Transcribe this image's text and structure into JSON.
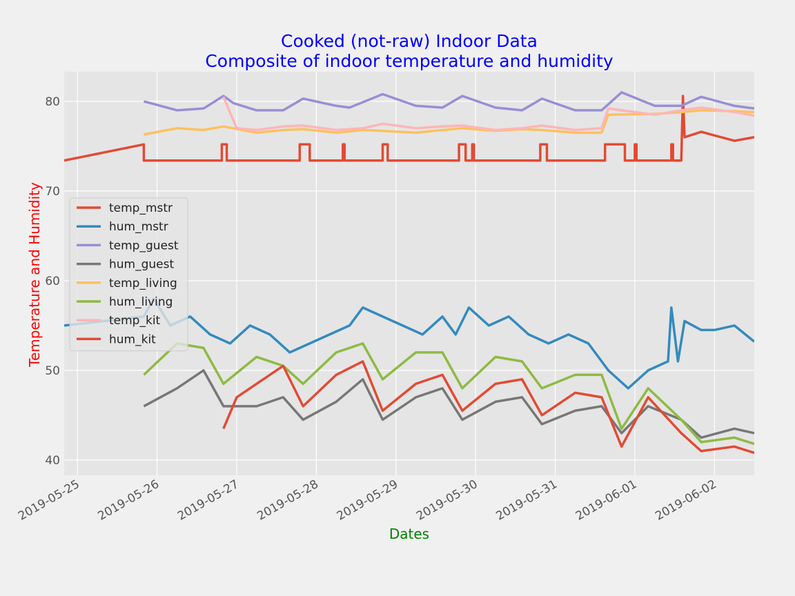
{
  "chart_data": {
    "type": "line",
    "title_lines": [
      "Cooked (not-raw) Indoor Data",
      "Composite of indoor temperature and humidity"
    ],
    "xlabel": "Dates",
    "ylabel": "Temperature and Humidity",
    "x_range": [
      "2019-05-24T20:00",
      "2019-06-02T12:00"
    ],
    "ylim": [
      38.3,
      83.3
    ],
    "y_ticks": [
      40,
      50,
      60,
      70,
      80
    ],
    "x_ticks": [
      "2019-05-25",
      "2019-05-26",
      "2019-05-27",
      "2019-05-28",
      "2019-05-29",
      "2019-05-30",
      "2019-05-31",
      "2019-06-01",
      "2019-06-02"
    ],
    "grid": true,
    "legend_position": "center-left",
    "colors": {
      "title": "#0000ff",
      "xlabel": "#008000",
      "ylabel": "#ff0000",
      "plot_bg": "#e5e5e5",
      "figure_bg": "#f0f0f0",
      "grid": "#ffffff"
    },
    "series": [
      {
        "name": "temp_mstr",
        "color": "#e24a33",
        "points": [
          [
            "2019-05-24T20:00",
            73.4
          ],
          [
            "2019-05-25T20:00",
            75.2
          ],
          [
            "2019-05-25T20:00",
            73.4
          ],
          [
            "2019-05-26T19:30",
            73.4
          ],
          [
            "2019-05-26T19:30",
            75.2
          ],
          [
            "2019-05-26T21:00",
            75.2
          ],
          [
            "2019-05-26T21:00",
            73.4
          ],
          [
            "2019-05-27T19:00",
            73.4
          ],
          [
            "2019-05-27T19:00",
            75.2
          ],
          [
            "2019-05-27T22:00",
            75.2
          ],
          [
            "2019-05-27T22:00",
            73.4
          ],
          [
            "2019-05-28T08:00",
            73.4
          ],
          [
            "2019-05-28T08:00",
            75.2
          ],
          [
            "2019-05-28T08:30",
            75.2
          ],
          [
            "2019-05-28T08:30",
            73.4
          ],
          [
            "2019-05-28T20:00",
            73.4
          ],
          [
            "2019-05-28T20:00",
            75.2
          ],
          [
            "2019-05-28T21:30",
            75.2
          ],
          [
            "2019-05-28T21:30",
            73.4
          ],
          [
            "2019-05-29T19:00",
            73.4
          ],
          [
            "2019-05-29T19:00",
            75.2
          ],
          [
            "2019-05-29T21:00",
            75.2
          ],
          [
            "2019-05-29T21:00",
            73.4
          ],
          [
            "2019-05-29T23:00",
            73.4
          ],
          [
            "2019-05-29T23:00",
            75.2
          ],
          [
            "2019-05-29T23:30",
            75.2
          ],
          [
            "2019-05-29T23:30",
            73.4
          ],
          [
            "2019-05-30T19:30",
            73.4
          ],
          [
            "2019-05-30T19:30",
            75.2
          ],
          [
            "2019-05-30T21:30",
            75.2
          ],
          [
            "2019-05-30T21:30",
            73.4
          ],
          [
            "2019-05-31T15:00",
            73.4
          ],
          [
            "2019-05-31T15:00",
            75.2
          ],
          [
            "2019-05-31T21:00",
            75.2
          ],
          [
            "2019-05-31T21:00",
            73.4
          ],
          [
            "2019-06-01T00:00",
            73.4
          ],
          [
            "2019-06-01T00:00",
            75.2
          ],
          [
            "2019-06-01T00:30",
            75.2
          ],
          [
            "2019-06-01T00:30",
            73.4
          ],
          [
            "2019-06-01T11:00",
            73.4
          ],
          [
            "2019-06-01T11:00",
            75.2
          ],
          [
            "2019-06-01T11:30",
            75.2
          ],
          [
            "2019-06-01T11:30",
            73.4
          ],
          [
            "2019-06-01T14:00",
            73.4
          ],
          [
            "2019-06-01T14:30",
            80.6
          ],
          [
            "2019-06-01T15:00",
            76.0
          ],
          [
            "2019-06-01T20:00",
            76.6
          ],
          [
            "2019-06-02T00:00",
            76.2
          ],
          [
            "2019-06-02T06:00",
            75.6
          ],
          [
            "2019-06-02T12:00",
            76.0
          ]
        ]
      },
      {
        "name": "hum_mstr",
        "color": "#348abd",
        "points": [
          [
            "2019-05-24T20:00",
            55.0
          ],
          [
            "2019-05-25T20:00",
            56.0
          ],
          [
            "2019-05-25T23:00",
            58.0
          ],
          [
            "2019-05-26T04:00",
            55.0
          ],
          [
            "2019-05-26T10:00",
            56.0
          ],
          [
            "2019-05-26T16:00",
            54.0
          ],
          [
            "2019-05-26T22:00",
            53.0
          ],
          [
            "2019-05-27T04:00",
            55.0
          ],
          [
            "2019-05-27T10:00",
            54.0
          ],
          [
            "2019-05-27T16:00",
            52.0
          ],
          [
            "2019-05-27T22:00",
            53.0
          ],
          [
            "2019-05-28T04:00",
            54.0
          ],
          [
            "2019-05-28T10:00",
            55.0
          ],
          [
            "2019-05-28T14:00",
            57.0
          ],
          [
            "2019-05-28T20:00",
            56.0
          ],
          [
            "2019-05-29T02:00",
            55.0
          ],
          [
            "2019-05-29T08:00",
            54.0
          ],
          [
            "2019-05-29T14:00",
            56.0
          ],
          [
            "2019-05-29T18:00",
            54.0
          ],
          [
            "2019-05-29T22:00",
            57.0
          ],
          [
            "2019-05-30T04:00",
            55.0
          ],
          [
            "2019-05-30T10:00",
            56.0
          ],
          [
            "2019-05-30T16:00",
            54.0
          ],
          [
            "2019-05-30T22:00",
            53.0
          ],
          [
            "2019-05-31T04:00",
            54.0
          ],
          [
            "2019-05-31T10:00",
            53.0
          ],
          [
            "2019-05-31T16:00",
            50.0
          ],
          [
            "2019-05-31T22:00",
            48.0
          ],
          [
            "2019-06-01T04:00",
            50.0
          ],
          [
            "2019-06-01T10:00",
            51.0
          ],
          [
            "2019-06-01T11:00",
            57.0
          ],
          [
            "2019-06-01T13:00",
            51.0
          ],
          [
            "2019-06-01T15:00",
            55.5
          ],
          [
            "2019-06-01T20:00",
            54.5
          ],
          [
            "2019-06-02T00:00",
            54.5
          ],
          [
            "2019-06-02T06:00",
            55.0
          ],
          [
            "2019-06-02T12:00",
            53.2
          ]
        ]
      },
      {
        "name": "temp_guest",
        "color": "#988ed5",
        "points": [
          [
            "2019-05-25T20:00",
            80.0
          ],
          [
            "2019-05-26T06:00",
            79.0
          ],
          [
            "2019-05-26T14:00",
            79.2
          ],
          [
            "2019-05-26T20:00",
            80.6
          ],
          [
            "2019-05-26T23:00",
            79.8
          ],
          [
            "2019-05-27T06:00",
            79.0
          ],
          [
            "2019-05-27T14:00",
            79.0
          ],
          [
            "2019-05-27T20:00",
            80.3
          ],
          [
            "2019-05-28T06:00",
            79.5
          ],
          [
            "2019-05-28T10:00",
            79.3
          ],
          [
            "2019-05-28T20:00",
            80.8
          ],
          [
            "2019-05-29T06:00",
            79.5
          ],
          [
            "2019-05-29T14:00",
            79.3
          ],
          [
            "2019-05-29T20:00",
            80.6
          ],
          [
            "2019-05-30T06:00",
            79.3
          ],
          [
            "2019-05-30T14:00",
            79.0
          ],
          [
            "2019-05-30T20:00",
            80.3
          ],
          [
            "2019-05-31T06:00",
            79.0
          ],
          [
            "2019-05-31T14:00",
            79.0
          ],
          [
            "2019-05-31T20:00",
            81.0
          ],
          [
            "2019-06-01T06:00",
            79.5
          ],
          [
            "2019-06-01T14:00",
            79.5
          ],
          [
            "2019-06-01T20:00",
            80.5
          ],
          [
            "2019-06-02T06:00",
            79.5
          ],
          [
            "2019-06-02T12:00",
            79.2
          ]
        ]
      },
      {
        "name": "hum_guest",
        "color": "#777777",
        "points": [
          [
            "2019-05-25T20:00",
            46.0
          ],
          [
            "2019-05-26T06:00",
            48.0
          ],
          [
            "2019-05-26T14:00",
            50.0
          ],
          [
            "2019-05-26T20:00",
            46.0
          ],
          [
            "2019-05-27T06:00",
            46.0
          ],
          [
            "2019-05-27T14:00",
            47.0
          ],
          [
            "2019-05-27T20:00",
            44.5
          ],
          [
            "2019-05-28T06:00",
            46.5
          ],
          [
            "2019-05-28T14:00",
            49.0
          ],
          [
            "2019-05-28T20:00",
            44.5
          ],
          [
            "2019-05-29T06:00",
            47.0
          ],
          [
            "2019-05-29T14:00",
            48.0
          ],
          [
            "2019-05-29T20:00",
            44.5
          ],
          [
            "2019-05-30T06:00",
            46.5
          ],
          [
            "2019-05-30T14:00",
            47.0
          ],
          [
            "2019-05-30T20:00",
            44.0
          ],
          [
            "2019-05-31T06:00",
            45.5
          ],
          [
            "2019-05-31T14:00",
            46.0
          ],
          [
            "2019-05-31T20:00",
            43.0
          ],
          [
            "2019-06-01T04:00",
            46.0
          ],
          [
            "2019-06-01T14:00",
            44.5
          ],
          [
            "2019-06-01T20:00",
            42.5
          ],
          [
            "2019-06-02T06:00",
            43.5
          ],
          [
            "2019-06-02T12:00",
            43.0
          ]
        ]
      },
      {
        "name": "temp_living",
        "color": "#fbc15e",
        "points": [
          [
            "2019-05-25T20:00",
            76.3
          ],
          [
            "2019-05-26T06:00",
            77.0
          ],
          [
            "2019-05-26T14:00",
            76.8
          ],
          [
            "2019-05-26T20:00",
            77.2
          ],
          [
            "2019-05-27T06:00",
            76.5
          ],
          [
            "2019-05-27T14:00",
            76.8
          ],
          [
            "2019-05-27T20:00",
            76.9
          ],
          [
            "2019-05-28T06:00",
            76.5
          ],
          [
            "2019-05-28T14:00",
            76.8
          ],
          [
            "2019-05-28T20:00",
            76.7
          ],
          [
            "2019-05-29T06:00",
            76.5
          ],
          [
            "2019-05-29T14:00",
            76.8
          ],
          [
            "2019-05-29T20:00",
            77.0
          ],
          [
            "2019-05-30T06:00",
            76.7
          ],
          [
            "2019-05-30T14:00",
            76.9
          ],
          [
            "2019-05-30T20:00",
            76.8
          ],
          [
            "2019-05-31T06:00",
            76.5
          ],
          [
            "2019-05-31T14:00",
            76.5
          ],
          [
            "2019-05-31T16:00",
            78.5
          ],
          [
            "2019-06-01T06:00",
            78.6
          ],
          [
            "2019-06-01T14:00",
            78.8
          ],
          [
            "2019-06-01T20:00",
            79.0
          ],
          [
            "2019-06-02T06:00",
            78.9
          ],
          [
            "2019-06-02T12:00",
            78.8
          ]
        ]
      },
      {
        "name": "hum_living",
        "color": "#8eba42",
        "points": [
          [
            "2019-05-25T20:00",
            49.5
          ],
          [
            "2019-05-26T06:00",
            53.0
          ],
          [
            "2019-05-26T14:00",
            52.5
          ],
          [
            "2019-05-26T20:00",
            48.5
          ],
          [
            "2019-05-27T06:00",
            51.5
          ],
          [
            "2019-05-27T14:00",
            50.5
          ],
          [
            "2019-05-27T20:00",
            48.5
          ],
          [
            "2019-05-28T06:00",
            52.0
          ],
          [
            "2019-05-28T14:00",
            53.0
          ],
          [
            "2019-05-28T20:00",
            49.0
          ],
          [
            "2019-05-29T06:00",
            52.0
          ],
          [
            "2019-05-29T14:00",
            52.0
          ],
          [
            "2019-05-29T20:00",
            48.0
          ],
          [
            "2019-05-30T06:00",
            51.5
          ],
          [
            "2019-05-30T14:00",
            51.0
          ],
          [
            "2019-05-30T20:00",
            48.0
          ],
          [
            "2019-05-31T06:00",
            49.5
          ],
          [
            "2019-05-31T14:00",
            49.5
          ],
          [
            "2019-05-31T20:00",
            43.5
          ],
          [
            "2019-06-01T04:00",
            48.0
          ],
          [
            "2019-06-01T14:00",
            44.5
          ],
          [
            "2019-06-01T20:00",
            42.0
          ],
          [
            "2019-06-02T06:00",
            42.5
          ],
          [
            "2019-06-02T12:00",
            41.8
          ]
        ]
      },
      {
        "name": "temp_kit",
        "color": "#ffb5b8",
        "points": [
          [
            "2019-05-26T20:00",
            80.5
          ],
          [
            "2019-05-27T00:00",
            77.0
          ],
          [
            "2019-05-27T06:00",
            76.8
          ],
          [
            "2019-05-27T14:00",
            77.2
          ],
          [
            "2019-05-27T20:00",
            77.3
          ],
          [
            "2019-05-28T06:00",
            76.8
          ],
          [
            "2019-05-28T14:00",
            77.0
          ],
          [
            "2019-05-28T20:00",
            77.5
          ],
          [
            "2019-05-29T06:00",
            77.0
          ],
          [
            "2019-05-29T14:00",
            77.2
          ],
          [
            "2019-05-29T20:00",
            77.3
          ],
          [
            "2019-05-30T06:00",
            76.8
          ],
          [
            "2019-05-30T14:00",
            77.0
          ],
          [
            "2019-05-30T20:00",
            77.3
          ],
          [
            "2019-05-31T06:00",
            76.8
          ],
          [
            "2019-05-31T14:00",
            77.0
          ],
          [
            "2019-05-31T16:00",
            79.2
          ],
          [
            "2019-06-01T06:00",
            78.5
          ],
          [
            "2019-06-01T14:00",
            79.0
          ],
          [
            "2019-06-01T20:00",
            79.3
          ],
          [
            "2019-06-02T06:00",
            78.8
          ],
          [
            "2019-06-02T12:00",
            78.4
          ]
        ]
      },
      {
        "name": "hum_kit",
        "color": "#e24a33",
        "points": [
          [
            "2019-05-26T20:00",
            43.5
          ],
          [
            "2019-05-27T00:00",
            47.0
          ],
          [
            "2019-05-27T06:00",
            48.5
          ],
          [
            "2019-05-27T14:00",
            50.5
          ],
          [
            "2019-05-27T20:00",
            46.0
          ],
          [
            "2019-05-28T06:00",
            49.5
          ],
          [
            "2019-05-28T14:00",
            51.0
          ],
          [
            "2019-05-28T20:00",
            45.5
          ],
          [
            "2019-05-29T06:00",
            48.5
          ],
          [
            "2019-05-29T14:00",
            49.5
          ],
          [
            "2019-05-29T20:00",
            45.5
          ],
          [
            "2019-05-30T06:00",
            48.5
          ],
          [
            "2019-05-30T14:00",
            49.0
          ],
          [
            "2019-05-30T20:00",
            45.0
          ],
          [
            "2019-05-31T06:00",
            47.5
          ],
          [
            "2019-05-31T14:00",
            47.0
          ],
          [
            "2019-05-31T20:00",
            41.5
          ],
          [
            "2019-06-01T04:00",
            47.0
          ],
          [
            "2019-06-01T14:00",
            43.0
          ],
          [
            "2019-06-01T20:00",
            41.0
          ],
          [
            "2019-06-02T06:00",
            41.5
          ],
          [
            "2019-06-02T12:00",
            40.8
          ]
        ]
      }
    ]
  }
}
